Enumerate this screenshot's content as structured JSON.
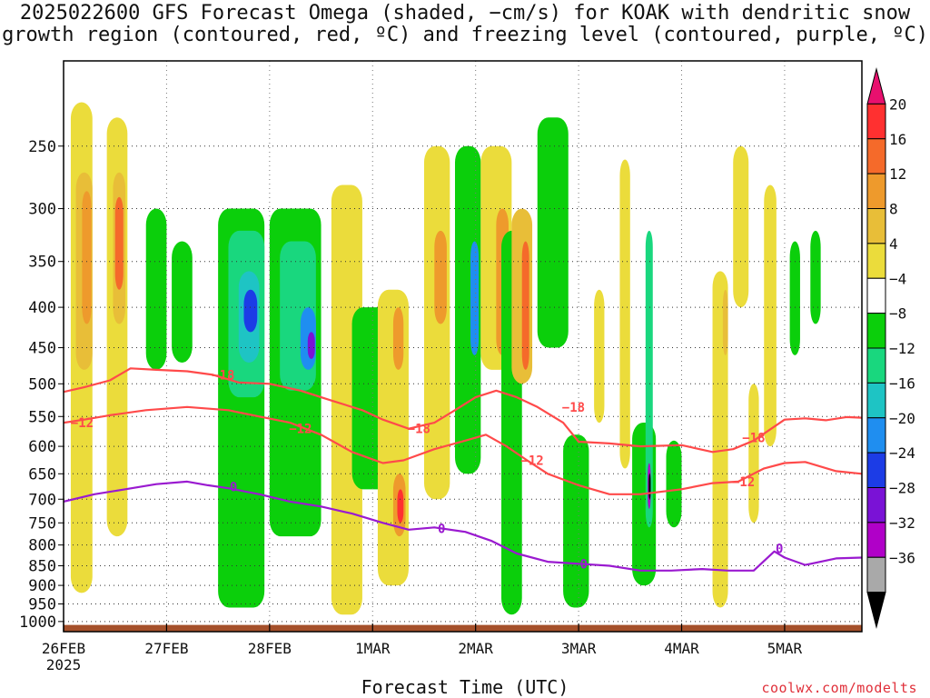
{
  "title_line1": "2025022600 GFS Forecast Omega (shaded, −cm/s) for KOAK with dendritic snow",
  "title_line2": "growth region (contoured, red, ºC) and freezing level (contoured, purple, ºC)",
  "credit": "coolwx.com/modelts",
  "chart_data": {
    "type": "heatmap",
    "title": "2025022600 GFS Forecast Omega (shaded, −cm/s) for KOAK with dendritic snow growth region (contoured, red, ºC) and freezing level (contoured, purple, ºC)",
    "xlabel": "Forecast Time (UTC)",
    "ylabel": "",
    "y_axis_scale": "log-pressure, inverted",
    "y_ticks": [
      250,
      300,
      350,
      400,
      450,
      500,
      550,
      600,
      650,
      700,
      750,
      800,
      850,
      900,
      950,
      1000
    ],
    "x_ticks": [
      "26FEB",
      "27FEB",
      "28FEB",
      "1MAR",
      "2MAR",
      "3MAR",
      "4MAR",
      "5MAR"
    ],
    "x_tick_sublabel": "2025",
    "x_range_days": [
      0,
      7.75
    ],
    "y_range_hpa": [
      195,
      1030
    ],
    "colorbar": {
      "labels": [
        "20",
        "16",
        "12",
        "8",
        "4",
        "−4",
        "−8",
        "−12",
        "−16",
        "−20",
        "−24",
        "−28",
        "−32",
        "−36"
      ],
      "colors": [
        "#e8106e",
        "#ff3030",
        "#f56a2a",
        "#ee9a2c",
        "#e8be38",
        "#ebdc3b",
        "#ffffff",
        "#0bcf0b",
        "#19d77e",
        "#1ec4c4",
        "#1f8ef0",
        "#1c3ce6",
        "#7a12d6",
        "#b000c8",
        "#a9a9a9",
        "#000000"
      ]
    },
    "shading_colors": {
      "pos4": "#ebdc3b",
      "pos8": "#e8be38",
      "pos12": "#ee9a2c",
      "pos16": "#f56a2a",
      "pos20": "#ff3030",
      "neg4": "#0bcf0b",
      "neg8": "#19d77e",
      "neg12": "#1ec4c4",
      "neg16": "#1f8ef0",
      "neg20": "#1c3ce6",
      "neg24": "#7a12d6",
      "neg28": "#b000c8",
      "neg32": "#a9a9a9",
      "neg36": "#000000",
      "ground": "#a5502a"
    },
    "series": [
      {
        "name": "−18",
        "color": "#ff4a4a",
        "x": [
          0,
          0.2,
          0.45,
          0.65,
          0.9,
          1.2,
          1.45,
          1.7,
          2.0,
          2.3,
          2.6,
          2.9,
          3.1,
          3.35,
          3.6,
          3.8,
          4.0,
          4.2,
          4.4,
          4.6,
          4.85,
          5.0,
          5.3,
          5.6,
          6.0,
          6.3,
          6.5,
          6.7,
          7.0,
          7.2,
          7.4,
          7.6,
          7.75
        ],
        "y": [
          512,
          505,
          495,
          478,
          480,
          482,
          487,
          498,
          500,
          510,
          525,
          540,
          555,
          570,
          560,
          540,
          520,
          510,
          520,
          535,
          560,
          592,
          595,
          600,
          598,
          610,
          605,
          590,
          555,
          553,
          556,
          551,
          552
        ],
        "labels": [
          {
            "x": 1.55,
            "y": 487,
            "text": "−18"
          },
          {
            "x": 3.45,
            "y": 570,
            "text": "−18"
          },
          {
            "x": 4.95,
            "y": 535,
            "text": "−18"
          },
          {
            "x": 6.7,
            "y": 585,
            "text": "−18"
          }
        ]
      },
      {
        "name": "−12",
        "color": "#ff4a4a",
        "x": [
          0,
          0.2,
          0.45,
          0.8,
          1.2,
          1.6,
          1.9,
          2.2,
          2.5,
          2.8,
          3.1,
          3.3,
          3.6,
          3.9,
          4.1,
          4.3,
          4.5,
          4.7,
          5.0,
          5.3,
          5.6,
          6.0,
          6.3,
          6.55,
          6.8,
          7.0,
          7.2,
          7.5,
          7.75
        ],
        "y": [
          560,
          555,
          548,
          540,
          535,
          540,
          550,
          560,
          580,
          610,
          630,
          625,
          605,
          590,
          580,
          600,
          625,
          650,
          672,
          690,
          690,
          680,
          668,
          665,
          640,
          630,
          628,
          645,
          650
        ],
        "labels": [
          {
            "x": 0.18,
            "y": 560,
            "text": "−12"
          },
          {
            "x": 2.3,
            "y": 570,
            "text": "−12"
          },
          {
            "x": 4.55,
            "y": 625,
            "text": "−12"
          },
          {
            "x": 6.6,
            "y": 665,
            "text": "−12"
          }
        ]
      },
      {
        "name": "0",
        "color": "#9a1ad0",
        "x": [
          0,
          0.3,
          0.6,
          0.9,
          1.2,
          1.4,
          1.6,
          1.9,
          2.2,
          2.5,
          2.8,
          3.1,
          3.35,
          3.6,
          3.9,
          4.15,
          4.4,
          4.7,
          5.0,
          5.3,
          5.6,
          5.9,
          6.2,
          6.45,
          6.7,
          6.9,
          7.0,
          7.2,
          7.5,
          7.75
        ],
        "y": [
          705,
          690,
          680,
          670,
          665,
          672,
          678,
          690,
          705,
          715,
          730,
          750,
          765,
          760,
          770,
          790,
          820,
          840,
          845,
          850,
          862,
          862,
          858,
          862,
          862,
          815,
          830,
          848,
          832,
          830
        ],
        "labels": [
          {
            "x": 1.65,
            "y": 675,
            "text": "0"
          },
          {
            "x": 3.67,
            "y": 762,
            "text": "0"
          },
          {
            "x": 5.05,
            "y": 845,
            "text": "0"
          },
          {
            "x": 6.95,
            "y": 808,
            "text": "0"
          }
        ]
      }
    ],
    "omega_cells": [
      [
        0.07,
        0.28,
        220,
        920,
        4
      ],
      [
        0.12,
        0.28,
        270,
        480,
        8
      ],
      [
        0.18,
        0.27,
        285,
        420,
        12
      ],
      [
        0.42,
        0.62,
        230,
        780,
        4
      ],
      [
        0.48,
        0.6,
        270,
        420,
        8
      ],
      [
        0.5,
        0.58,
        290,
        380,
        16
      ],
      [
        0.8,
        1.0,
        300,
        480,
        -4
      ],
      [
        1.05,
        1.25,
        330,
        470,
        -4
      ],
      [
        1.5,
        1.95,
        300,
        960,
        -4
      ],
      [
        1.6,
        1.95,
        320,
        520,
        -8
      ],
      [
        1.7,
        1.9,
        360,
        470,
        -12
      ],
      [
        1.75,
        1.88,
        380,
        430,
        -20
      ],
      [
        2.0,
        2.5,
        300,
        780,
        -4
      ],
      [
        2.1,
        2.45,
        330,
        510,
        -8
      ],
      [
        2.3,
        2.45,
        400,
        480,
        -16
      ],
      [
        2.37,
        2.44,
        430,
        465,
        -24
      ],
      [
        2.6,
        2.9,
        280,
        980,
        4
      ],
      [
        2.8,
        3.2,
        400,
        680,
        -4
      ],
      [
        3.05,
        3.35,
        380,
        900,
        4
      ],
      [
        3.2,
        3.3,
        400,
        480,
        12
      ],
      [
        3.2,
        3.32,
        650,
        780,
        12
      ],
      [
        3.24,
        3.3,
        680,
        750,
        20
      ],
      [
        3.5,
        3.75,
        250,
        700,
        4
      ],
      [
        3.6,
        3.72,
        320,
        420,
        12
      ],
      [
        3.8,
        4.05,
        250,
        650,
        -4
      ],
      [
        3.95,
        4.03,
        330,
        460,
        -16
      ],
      [
        4.05,
        4.35,
        250,
        480,
        4
      ],
      [
        4.2,
        4.32,
        300,
        460,
        12
      ],
      [
        4.25,
        4.45,
        320,
        980,
        -4
      ],
      [
        4.35,
        4.55,
        300,
        500,
        8
      ],
      [
        4.45,
        4.52,
        330,
        480,
        16
      ],
      [
        4.6,
        4.9,
        230,
        450,
        -4
      ],
      [
        4.85,
        5.1,
        580,
        960,
        -4
      ],
      [
        5.15,
        5.25,
        380,
        560,
        4
      ],
      [
        5.4,
        5.5,
        260,
        640,
        4
      ],
      [
        5.52,
        5.75,
        560,
        900,
        -4
      ],
      [
        5.65,
        5.72,
        320,
        760,
        -8
      ],
      [
        5.67,
        5.7,
        630,
        720,
        -28
      ],
      [
        5.68,
        5.7,
        650,
        700,
        -36
      ],
      [
        5.85,
        6.0,
        590,
        760,
        -4
      ],
      [
        6.3,
        6.45,
        360,
        960,
        4
      ],
      [
        6.4,
        6.45,
        380,
        460,
        8
      ],
      [
        6.5,
        6.65,
        250,
        400,
        4
      ],
      [
        6.65,
        6.75,
        500,
        750,
        4
      ],
      [
        6.8,
        6.92,
        280,
        600,
        4
      ],
      [
        7.05,
        7.15,
        330,
        460,
        -4
      ],
      [
        7.25,
        7.35,
        320,
        420,
        -4
      ]
    ]
  }
}
